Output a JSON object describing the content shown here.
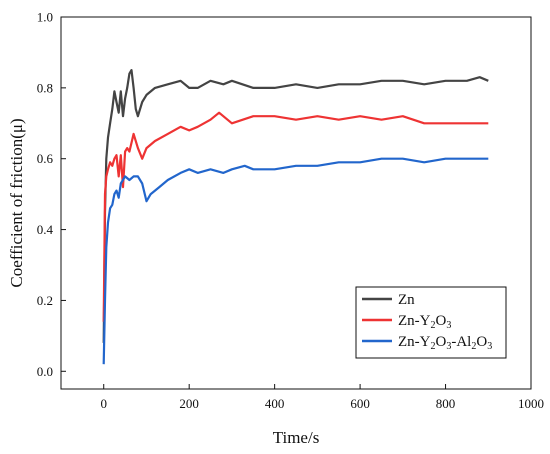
{
  "chart_data": {
    "type": "line",
    "xlabel": "Time/s",
    "ylabel": "Coefficient of friction(μ)",
    "xlim": [
      -100,
      1000
    ],
    "ylim": [
      -0.05,
      1.0
    ],
    "xticks": [
      0,
      200,
      400,
      600,
      800,
      1000
    ],
    "yticks": [
      0.0,
      0.2,
      0.4,
      0.6,
      0.8,
      1.0
    ],
    "x_tick_labels": [
      "0",
      "200",
      "400",
      "600",
      "800",
      "1000"
    ],
    "y_tick_labels": [
      "0.0",
      "0.2",
      "0.4",
      "0.6",
      "0.8",
      "1.0"
    ],
    "grid": false,
    "legend_position": "bottom-right",
    "series": [
      {
        "name": "Zn",
        "legend": {
          "base": "Zn",
          "parts": []
        },
        "color": "#444444",
        "x": [
          0,
          3,
          6,
          10,
          15,
          20,
          25,
          30,
          35,
          40,
          45,
          50,
          55,
          60,
          65,
          70,
          75,
          80,
          90,
          100,
          120,
          150,
          180,
          200,
          220,
          250,
          280,
          300,
          350,
          400,
          450,
          500,
          550,
          600,
          650,
          700,
          750,
          800,
          850,
          880,
          900
        ],
        "y": [
          0.08,
          0.45,
          0.6,
          0.66,
          0.7,
          0.74,
          0.79,
          0.76,
          0.73,
          0.79,
          0.72,
          0.77,
          0.8,
          0.84,
          0.85,
          0.8,
          0.74,
          0.72,
          0.76,
          0.78,
          0.8,
          0.81,
          0.82,
          0.8,
          0.8,
          0.82,
          0.81,
          0.82,
          0.8,
          0.8,
          0.81,
          0.8,
          0.81,
          0.81,
          0.82,
          0.82,
          0.81,
          0.82,
          0.82,
          0.83,
          0.82
        ]
      },
      {
        "name": "Zn-Y2O3",
        "legend": {
          "base": "Zn-Y",
          "parts": [
            {
              "text": "2",
              "sub": true
            },
            {
              "text": "O",
              "sub": false
            },
            {
              "text": "3",
              "sub": true
            }
          ]
        },
        "color": "#ee3333",
        "x": [
          0,
          3,
          6,
          10,
          15,
          20,
          25,
          30,
          35,
          40,
          45,
          50,
          55,
          60,
          70,
          80,
          90,
          100,
          120,
          150,
          180,
          200,
          220,
          250,
          270,
          300,
          350,
          400,
          450,
          500,
          550,
          600,
          650,
          700,
          750,
          800,
          850,
          900
        ],
        "y": [
          0.14,
          0.5,
          0.55,
          0.57,
          0.59,
          0.58,
          0.6,
          0.61,
          0.55,
          0.61,
          0.52,
          0.62,
          0.63,
          0.62,
          0.67,
          0.63,
          0.6,
          0.63,
          0.65,
          0.67,
          0.69,
          0.68,
          0.69,
          0.71,
          0.73,
          0.7,
          0.72,
          0.72,
          0.71,
          0.72,
          0.71,
          0.72,
          0.71,
          0.72,
          0.7,
          0.7,
          0.7,
          0.7
        ]
      },
      {
        "name": "Zn-Y2O3-Al2O3",
        "legend": {
          "base": "Zn-Y",
          "parts": [
            {
              "text": "2",
              "sub": true
            },
            {
              "text": "O",
              "sub": false
            },
            {
              "text": "3",
              "sub": true
            },
            {
              "text": "-Al",
              "sub": false
            },
            {
              "text": "2",
              "sub": true
            },
            {
              "text": "O",
              "sub": false
            },
            {
              "text": "3",
              "sub": true
            }
          ]
        },
        "color": "#2266cc",
        "x": [
          0,
          3,
          6,
          10,
          15,
          20,
          25,
          30,
          35,
          40,
          50,
          60,
          70,
          80,
          90,
          100,
          110,
          130,
          150,
          180,
          200,
          220,
          250,
          280,
          300,
          330,
          350,
          400,
          450,
          500,
          550,
          600,
          650,
          700,
          750,
          800,
          850,
          900
        ],
        "y": [
          0.02,
          0.2,
          0.35,
          0.42,
          0.46,
          0.47,
          0.5,
          0.51,
          0.49,
          0.53,
          0.55,
          0.54,
          0.55,
          0.55,
          0.53,
          0.48,
          0.5,
          0.52,
          0.54,
          0.56,
          0.57,
          0.56,
          0.57,
          0.56,
          0.57,
          0.58,
          0.57,
          0.57,
          0.58,
          0.58,
          0.59,
          0.59,
          0.6,
          0.6,
          0.59,
          0.6,
          0.6,
          0.6
        ]
      }
    ]
  }
}
